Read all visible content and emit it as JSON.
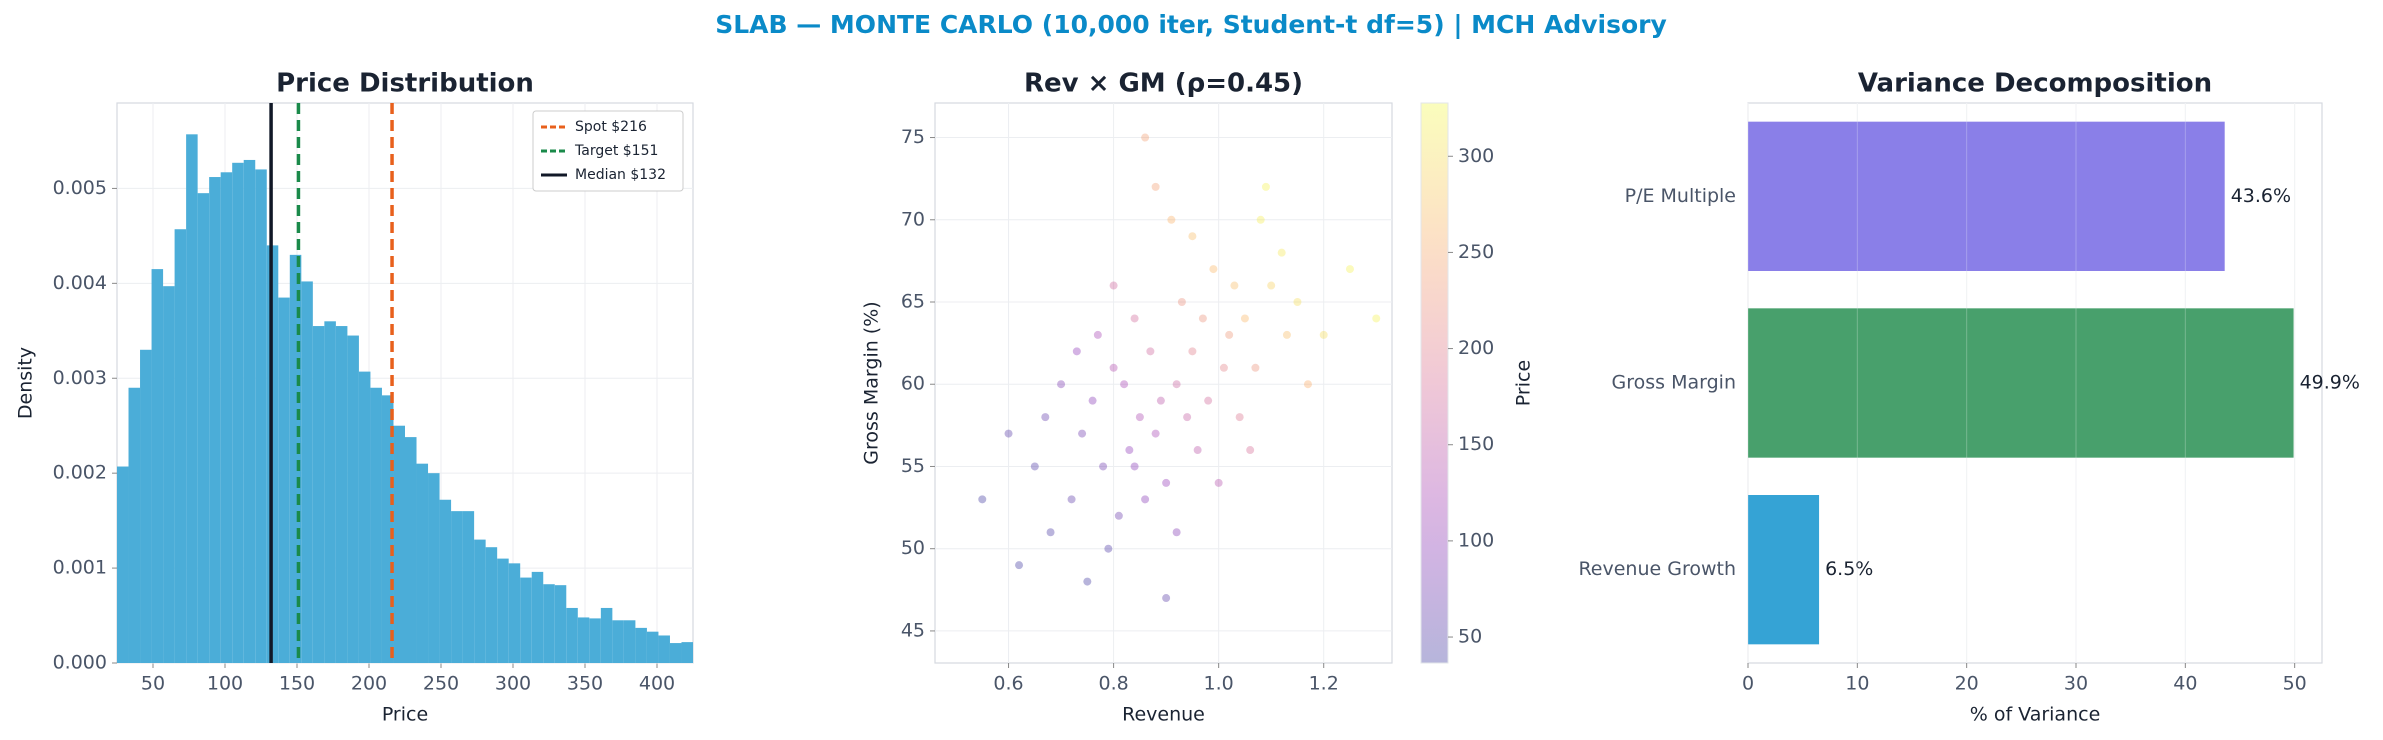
{
  "title": "SLAB — MONTE CARLO (10,000 iter, Student-t df=5) | MCH Advisory",
  "chart_data": [
    {
      "type": "histogram",
      "title": "Price Distribution",
      "xlabel": "Price",
      "ylabel": "Density",
      "bins": [
        25,
        33,
        41,
        49,
        57,
        65,
        73,
        81,
        89,
        97,
        105,
        113,
        121,
        129,
        137,
        145,
        153,
        161,
        169,
        177,
        185,
        193,
        201,
        209,
        217,
        225,
        233,
        241,
        249,
        257,
        265,
        273,
        281,
        289,
        297,
        305,
        313,
        321,
        329,
        337,
        345,
        353,
        361,
        369,
        377,
        385,
        393,
        401,
        409,
        417,
        425
      ],
      "values": [
        0.00207,
        0.0029,
        0.0033,
        0.00415,
        0.00397,
        0.00457,
        0.00557,
        0.00495,
        0.00512,
        0.00517,
        0.00527,
        0.0053,
        0.0052,
        0.0044,
        0.00385,
        0.0043,
        0.00402,
        0.00355,
        0.0036,
        0.00355,
        0.00345,
        0.00307,
        0.0029,
        0.00282,
        0.0025,
        0.00238,
        0.0021,
        0.002,
        0.00172,
        0.0016,
        0.0016,
        0.0013,
        0.00122,
        0.0011,
        0.00105,
        0.0009,
        0.00096,
        0.00083,
        0.00082,
        0.00058,
        0.00048,
        0.00047,
        0.00058,
        0.00045,
        0.00045,
        0.00037,
        0.00033,
        0.00029,
        0.00021,
        0.00022
      ],
      "color": "#4badd8",
      "xlim": [
        25,
        425
      ],
      "ylim": [
        0,
        0.0059
      ],
      "xticks": [
        50,
        100,
        150,
        200,
        250,
        300,
        350,
        400
      ],
      "yticks": [
        {
          "value": 0,
          "label": "0.000"
        },
        {
          "value": 0.001,
          "label": "0.001"
        },
        {
          "value": 0.002,
          "label": "0.002"
        },
        {
          "value": 0.003,
          "label": "0.003"
        },
        {
          "value": 0.004,
          "label": "0.004"
        },
        {
          "value": 0.005,
          "label": "0.005"
        }
      ],
      "grid": true,
      "legend": "upper right",
      "lines": [
        {
          "name": "Spot $216",
          "x": 216,
          "color": "#e8601c",
          "style": "dashed"
        },
        {
          "name": "Target $151",
          "x": 151,
          "color": "#1a8a4a",
          "style": "dashed"
        },
        {
          "name": "Median $132",
          "x": 132,
          "color": "#111827",
          "style": "solid"
        }
      ]
    },
    {
      "type": "scatter",
      "title": "Rev × GM (ρ=0.45)",
      "xlabel": "Revenue",
      "ylabel": "Gross Margin (%)",
      "x": [
        0.85,
        0.92,
        0.78,
        1.05,
        0.95,
        0.88,
        0.72,
        1.1,
        0.8,
        0.98,
        1.02,
        0.83,
        0.9,
        0.76,
        1.15,
        0.68,
        0.93,
        1.07,
        0.87,
        0.81,
        0.99,
        0.74,
        0.96,
        1.12,
        0.89,
        0.65,
        1.2,
        0.84,
        0.79,
        1.04,
        0.91,
        0.7,
        1.0,
        0.86,
        1.08,
        0.94,
        0.77,
        1.25,
        0.6,
        0.97,
        0.82,
        1.03,
        0.75,
        0.88,
        1.17,
        0.92,
        0.55,
        1.01,
        0.84,
        0.95,
        0.73,
        1.13,
        0.9,
        0.67,
        1.06,
        0.8,
        1.3,
        0.86,
        0.62,
        1.09
      ],
      "y": [
        58,
        60,
        55,
        64,
        62,
        57,
        53,
        66,
        61,
        59,
        63,
        56,
        54,
        59,
        65,
        51,
        65,
        61,
        62,
        52,
        67,
        57,
        56,
        68,
        59,
        55,
        63,
        64,
        50,
        58,
        70,
        60,
        54,
        53,
        70,
        58,
        63,
        67,
        57,
        64,
        60,
        66,
        48,
        72,
        60,
        51,
        53,
        61,
        55,
        69,
        62,
        63,
        47,
        58,
        56,
        66,
        64,
        75,
        49,
        72
      ],
      "c": [
        130,
        165,
        75,
        265,
        200,
        125,
        60,
        290,
        135,
        175,
        230,
        100,
        105,
        95,
        300,
        45,
        220,
        225,
        170,
        70,
        265,
        75,
        145,
        310,
        145,
        50,
        300,
        175,
        50,
        190,
        260,
        85,
        140,
        95,
        315,
        160,
        125,
        320,
        55,
        225,
        125,
        270,
        40,
        240,
        255,
        90,
        40,
        205,
        95,
        270,
        100,
        270,
        55,
        65,
        180,
        170,
        320,
        240,
        40,
        320
      ],
      "colormap": "plasma",
      "alpha": 0.3,
      "colorbar_label": "Price",
      "clim": [
        36.5,
        327.7
      ],
      "cticks": [
        50,
        100,
        150,
        200,
        250,
        300
      ],
      "xlim": [
        0.46,
        1.33
      ],
      "ylim": [
        43.05,
        77.1
      ],
      "xticks": [
        0.6,
        0.8,
        {
          "value": 1,
          "label": "1.0"
        },
        1.2
      ],
      "yticks": [
        45,
        50,
        55,
        60,
        65,
        70,
        75
      ],
      "grid": true
    },
    {
      "type": "barh",
      "title": "Variance Decomposition",
      "xlabel": "% of Variance",
      "categories": [
        "Revenue Growth",
        "Gross Margin",
        "P/E Multiple"
      ],
      "values": [
        6.5,
        49.9,
        43.6
      ],
      "value_labels": [
        "6.5%",
        "49.9%",
        "43.6%"
      ],
      "colors": [
        "#35a3d5",
        "#48a06c",
        "#8a7fe8"
      ],
      "xlim": [
        0,
        52.5
      ],
      "xticks": [
        0,
        10,
        20,
        30,
        40,
        50
      ],
      "grid": true
    }
  ]
}
